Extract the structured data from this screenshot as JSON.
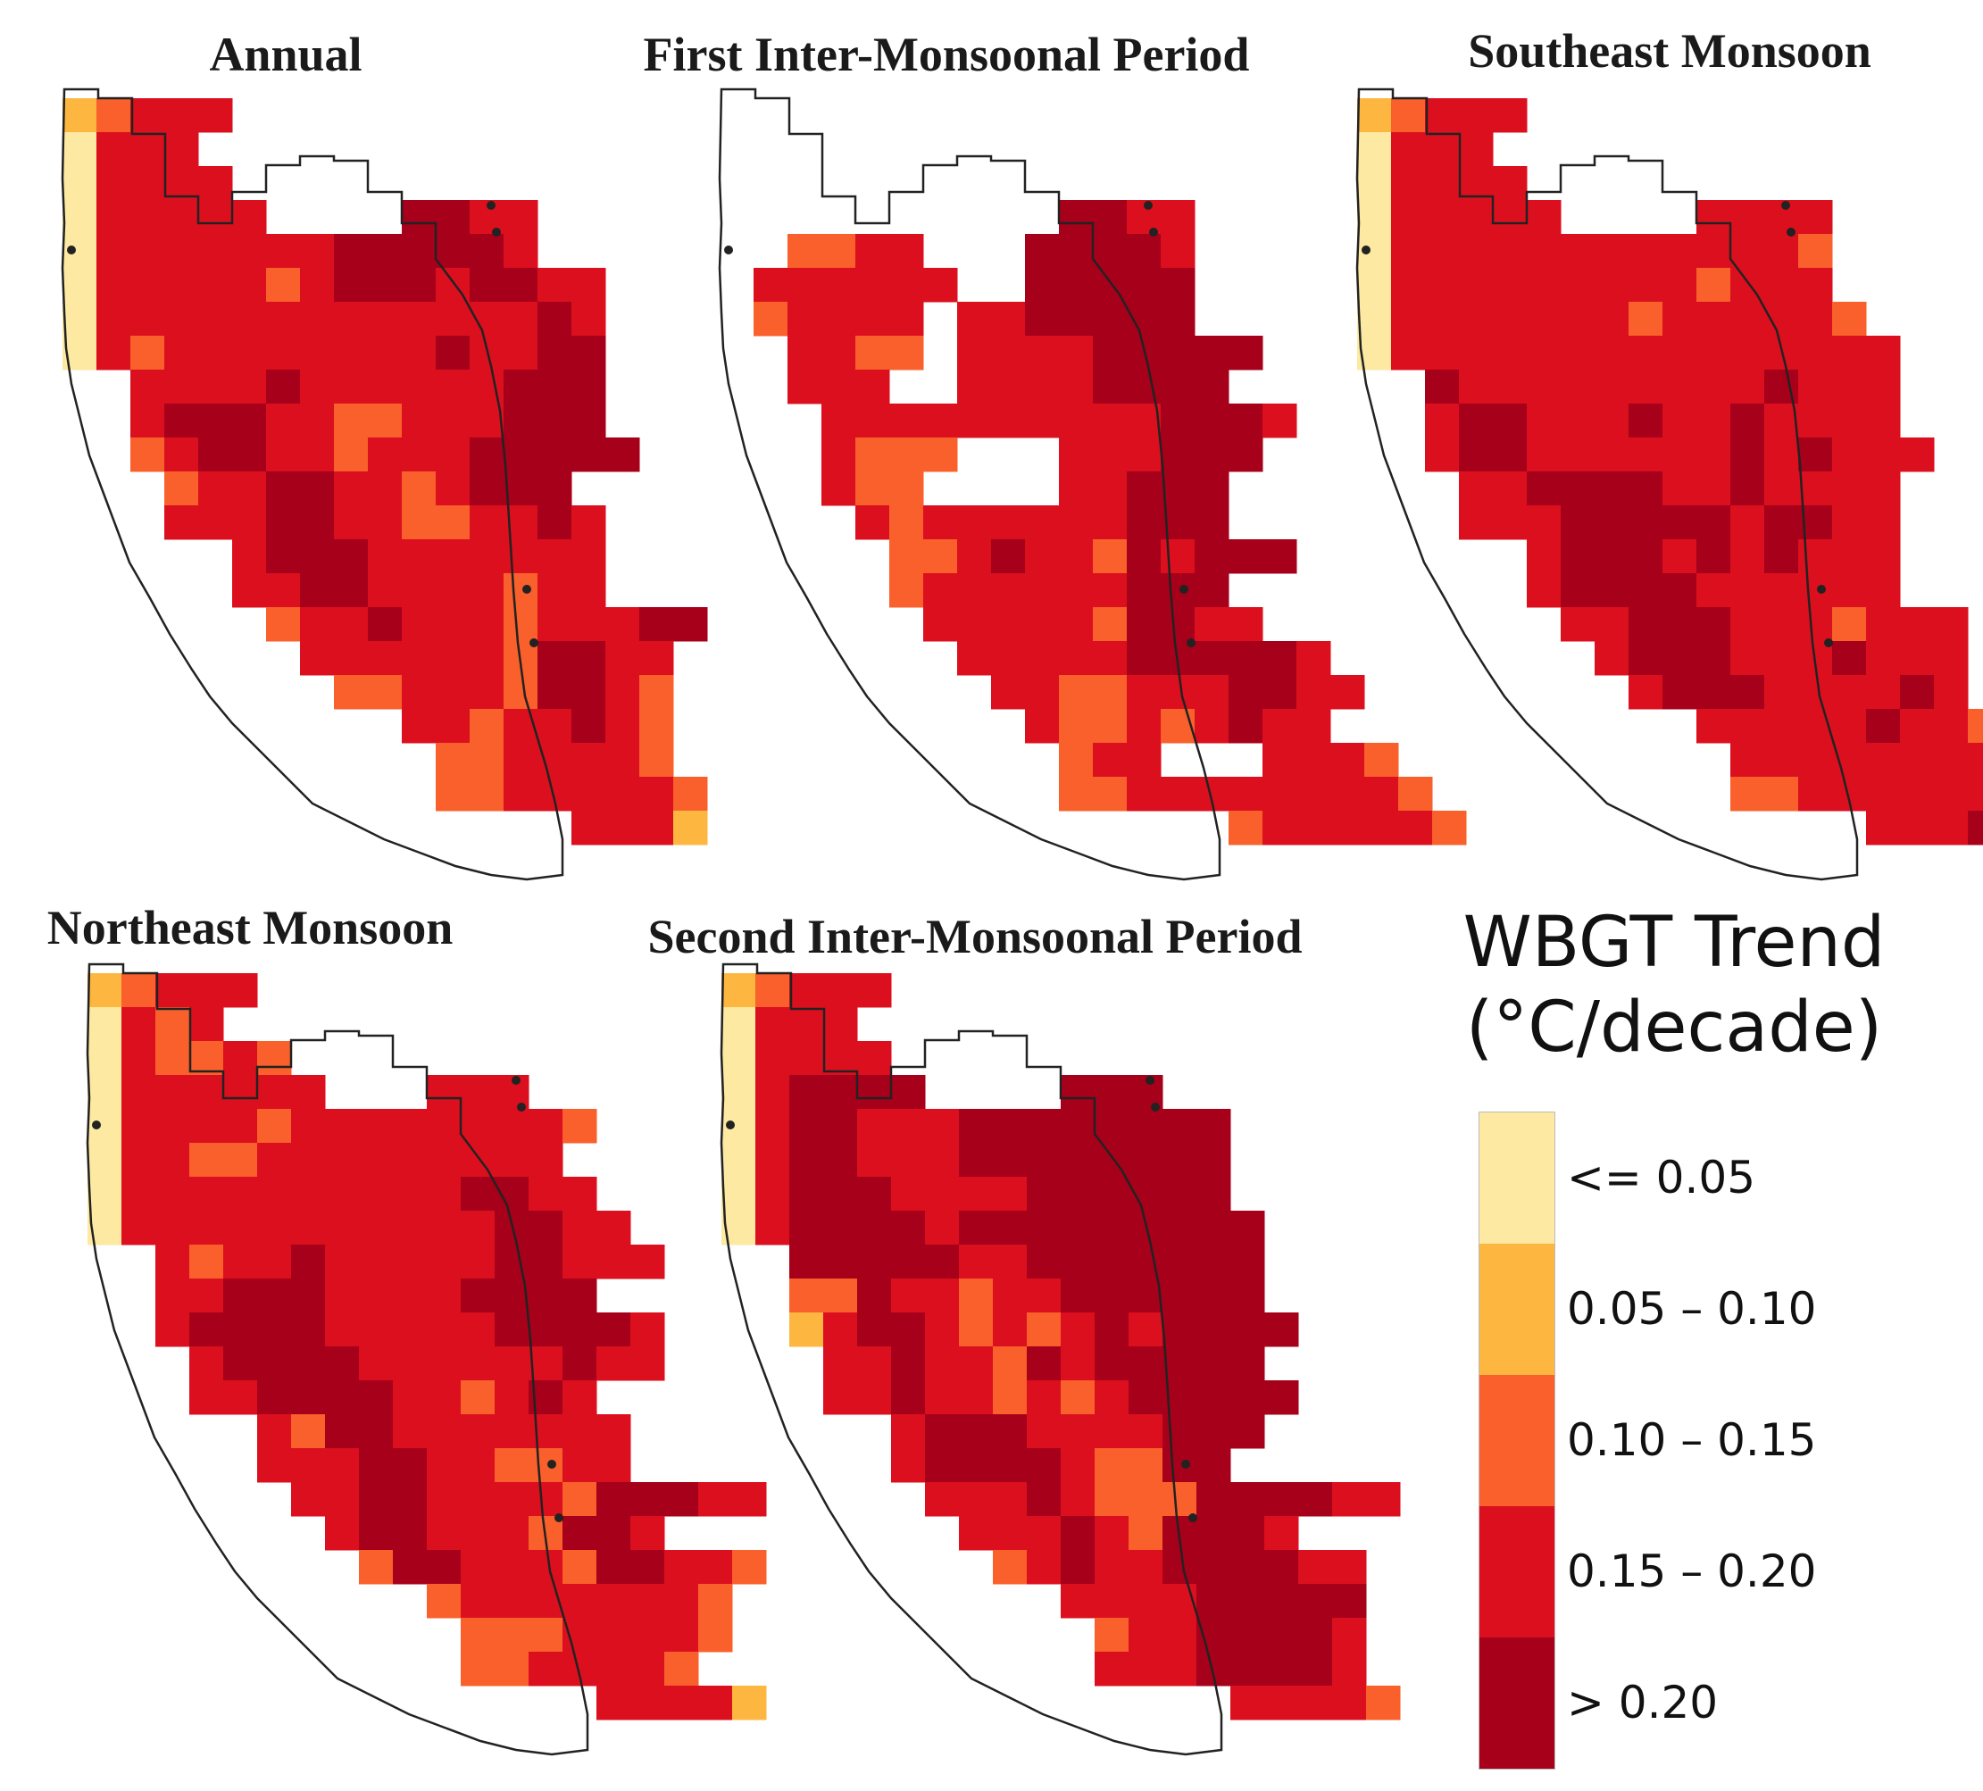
{
  "panels": [
    {
      "title": "Annual",
      "grid_key": "annual"
    },
    {
      "title": "First Inter-Monsoonal Period",
      "grid_key": "fim"
    },
    {
      "title": "Southeast Monsoon",
      "grid_key": "sem"
    },
    {
      "title": "Northeast Monsoon",
      "grid_key": "nem"
    },
    {
      "title": "Second Inter-Monsoonal Period",
      "grid_key": "sim"
    }
  ],
  "legend": {
    "title_line1": "WBGT Trend",
    "title_line2": "(°C/decade)",
    "classes": [
      {
        "label": "<= 0.05",
        "color": "#fde9a1"
      },
      {
        "label": "0.05 – 0.10",
        "color": "#fdb740"
      },
      {
        "label": "0.10 – 0.15",
        "color": "#f9602b"
      },
      {
        "label": "0.15 – 0.20",
        "color": "#dc0f1e"
      },
      {
        "label": "> 0.20",
        "color": "#a7001a"
      }
    ]
  },
  "grids": {
    "annual": [
      "12333..............",
      "0333...............",
      "03333..............",
      "033333....4433.....",
      "03333333444443.....",
      "0333332344434433...",
      "0333333333333343...",
      "0323333333343344...",
      "..33334333333444...",
      "..34443322333444...",
      "..234433233344444..",
      "...233443323444....",
      "...3334433223343...",
      ".....34443333333...",
      ".....33443333233...",
      "......2334333233344",
      ".......33333324433.",
      "........2233324432.",
      "..........33233432.",
      "...........2233332.",
      "...........22333332",
      "...............3331"
    ],
    "fim": [
      ".......................",
      ".......................",
      ".......................",
      "..........4433.........",
      "..2233...44443.........",
      ".333333..44444.........",
      ".23333.3344444.........",
      "..3322.333344444.......",
      "..333..33334444........",
      "...33333333334443......",
      "...3222...333444.......",
      "...322....33444........",
      "....32333333444........",
      ".....223433243444......",
      ".....2333333444........",
      "......3333324433.......",
      ".......33333444443.....",
      "........33223334433....",
      ".........322323433.....",
      "..........233...3332...",
      "..........22333333332..",
      "...............2333332."
    ],
    "sem": [
      "12333...............",
      "0333................",
      "03333...............",
      "033333....3333......",
      "03333333333332......",
      "03333333332333......",
      "033333332333332.....",
      "0333333333333333....",
      "..43333333334333....",
      "..34433343343333....",
      "..344333333434333...",
      "...3344443343333....",
      "...3334444434433....",
      ".....34443434333....",
      ".....34444333333....",
      "......334443332333..",
      ".......34443334333..",
      "........3444333343..",
      "..........333334332.",
      "...........33333333.",
      "...........22333333.",
      "...............33343"
    ],
    "nem": [
      "12333...............",
      "0323................",
      "032232..............",
      "0333333...333.......",
      "033332333333332.....",
      "03322333333333......",
      "033333333334433.....",
      "0333333333334433....",
      "..323343333344333...",
      "..3344433334444.....",
      "..344443333344443...",
      "...34444333333433...",
      "...334444332343.....",
      ".....32443333333....",
      ".....33344332233....",
      "......33443333244433",
      ".......3443332443...",
      "........244333244332",
      "..........233333332.",
      "...........22233332.",
      "...........2233332..",
      "...............33331"
    ],
    "sim": [
      "12333..............",
      "0333...............",
      "03333..............",
      "034444....444......",
      "034433344444444....",
      "034433344444444....",
      "034443333444444....",
      "0344443444444444...",
      "..44444334444444...",
      "..22433233444444...",
      "..134432323434444..",
      "...3343324344444...",
      "...33433232344444..",
      ".....34443333444...",
      ".....3444432244....",
      "......33343222444433",
      ".......3334324443...",
      "........23433444433.",
      "..........333344444.",
      "...........23344443.",
      "...........33344443.",
      "...............33332"
    ]
  }
}
